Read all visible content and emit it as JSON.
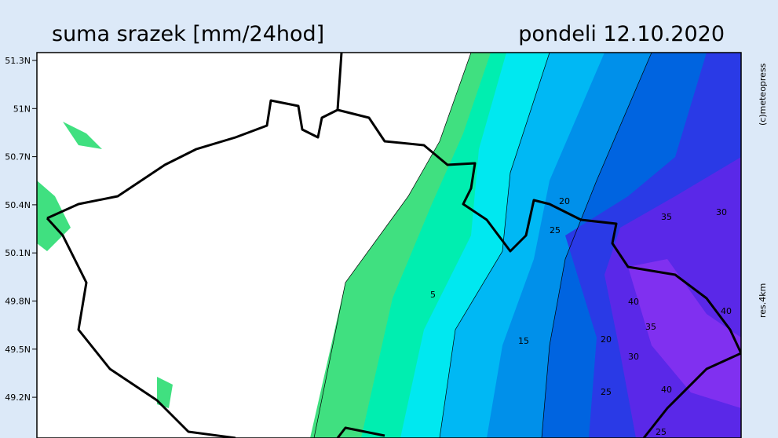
{
  "header": {
    "title": "suma srazek [mm/24hod]",
    "date": "pondeli 12.10.2020"
  },
  "credits": {
    "copyright": "(c)meteopress",
    "resolution": "res.4km"
  },
  "lat_labels": [
    "51.3N",
    "51N",
    "50.7N",
    "50.4N",
    "50.1N",
    "49.8N",
    "49.5N",
    "49.2N"
  ],
  "contour_labels": [
    "20",
    "25",
    "35",
    "30",
    "5",
    "15",
    "20",
    "30",
    "40",
    "35",
    "40",
    "25",
    "40",
    "25"
  ]
}
